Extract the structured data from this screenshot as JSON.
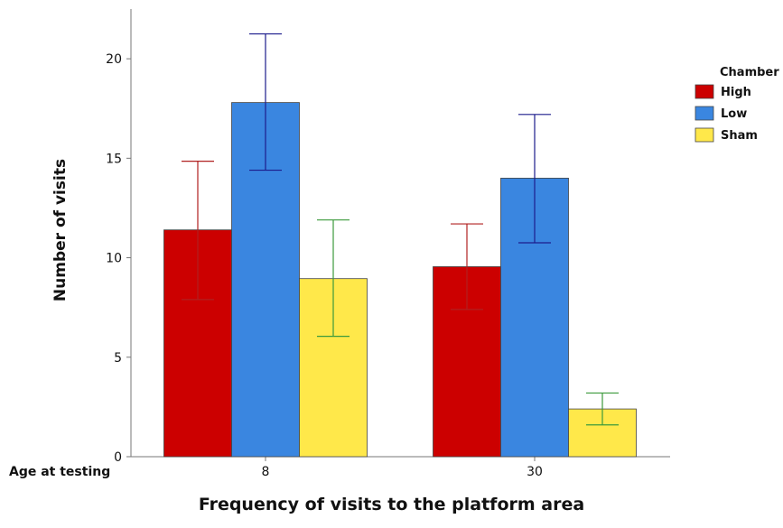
{
  "chart_data": {
    "type": "bar",
    "caption": "Frequency of visits to the platform area",
    "ylabel": "Number of visits",
    "group_axis_title": "Age at testing",
    "categories": [
      "8",
      "30"
    ],
    "ylim": [
      0,
      22.5
    ],
    "yticks": [
      0,
      5,
      10,
      15,
      20
    ],
    "legend": {
      "title": "Chamber",
      "placement": "right"
    },
    "series": [
      {
        "name": "High",
        "color": "#CC0000",
        "errcolor": "#B02020",
        "values": [
          11.4,
          9.55
        ],
        "err_low": [
          7.9,
          7.4
        ],
        "err_high": [
          14.85,
          11.7
        ]
      },
      {
        "name": "Low",
        "color": "#3A86E0",
        "errcolor": "#1C1C8C",
        "values": [
          17.8,
          14.0
        ],
        "err_low": [
          14.4,
          10.75
        ],
        "err_high": [
          21.25,
          17.2
        ]
      },
      {
        "name": "Sham",
        "color": "#FFE84A",
        "errcolor": "#3C9A3C",
        "values": [
          8.95,
          2.4
        ],
        "err_low": [
          6.05,
          1.6
        ],
        "err_high": [
          11.9,
          3.2
        ]
      }
    ],
    "grid": false
  }
}
